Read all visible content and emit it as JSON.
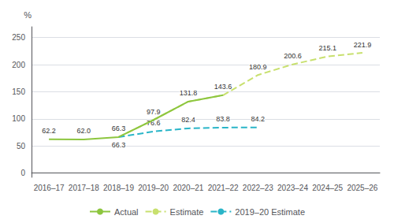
{
  "chart_data": {
    "type": "line",
    "y_label": "%",
    "categories": [
      "2016–17",
      "2017–18",
      "2018–19",
      "2019–20",
      "2020–21",
      "2021–22",
      "2022–23",
      "2023–24",
      "2024–25",
      "2025–26"
    ],
    "series": [
      {
        "name": "Actual",
        "color": "#8dc63f",
        "line_style": "solid",
        "values": [
          62.2,
          62.0,
          66.3,
          97.9,
          131.8,
          143.6,
          null,
          null,
          null,
          null
        ],
        "value_labels": [
          "62.2",
          "62.0",
          "66.3",
          "97.9",
          "131.8",
          "143.6",
          null,
          null,
          null,
          null
        ]
      },
      {
        "name": "Estimate",
        "color": "#c8e06e",
        "line_style": "dashed",
        "values": [
          null,
          null,
          66.3,
          97.9,
          131.8,
          143.6,
          180.9,
          200.6,
          215.1,
          221.9
        ],
        "value_labels": [
          null,
          null,
          "66.3",
          null,
          null,
          null,
          "180.9",
          "200.6",
          "215.1",
          "221.9"
        ]
      },
      {
        "name": "2019–20 Estimate",
        "color": "#2ab5c8",
        "line_style": "dashed",
        "values": [
          null,
          null,
          66.3,
          76.6,
          82.4,
          83.8,
          84.2,
          null,
          null,
          null
        ],
        "value_labels": [
          null,
          null,
          null,
          "76.6",
          "82.4",
          "83.8",
          "84.2",
          null,
          null,
          null
        ]
      }
    ],
    "ylim": [
      -8,
      270
    ],
    "yticks": [
      0,
      50,
      100,
      150,
      200,
      250
    ],
    "grid": true,
    "legend": "bottom",
    "data_labels": true
  }
}
